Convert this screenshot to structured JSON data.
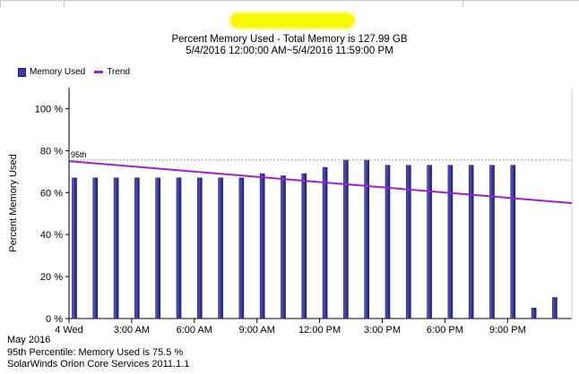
{
  "chart_title": "Percent Memory Used - Total Memory is 127.99 GB",
  "chart_subtitle": "5/4/2016 12:00:00 AM~5/4/2016 11:59:00 PM",
  "legend": {
    "bars_label": "Memory Used",
    "line_label": "Trend"
  },
  "footer": {
    "month": "May 2016",
    "percentile_note": "95th Percentile: Memory Used is 75.5  %",
    "product": "SolarWinds Orion Core Services 2011.1.1"
  },
  "chart_data": {
    "type": "bar",
    "title": "Percent Memory Used - Total Memory is 127.99 GB",
    "subtitle": "5/4/2016 12:00:00 AM~5/4/2016 11:59:00 PM",
    "ylabel": "Percent Memory Used",
    "ylim": [
      0,
      110
    ],
    "yticks": [
      0,
      20,
      40,
      60,
      80,
      100
    ],
    "ytick_labels": [
      "0 %",
      "20 %",
      "40 %",
      "60 %",
      "80 %",
      "100 %"
    ],
    "xtick_labels": [
      "4 Wed",
      "3:00 AM",
      "6:00 AM",
      "9:00 AM",
      "12:00 PM",
      "3:00 PM",
      "6:00 PM",
      "9:00 PM"
    ],
    "xtick_hours": [
      0,
      3,
      6,
      9,
      12,
      15,
      18,
      21
    ],
    "x_hours": [
      0,
      1,
      2,
      3,
      4,
      5,
      6,
      7,
      8,
      9,
      10,
      11,
      12,
      13,
      14,
      15,
      16,
      17,
      18,
      19,
      20,
      21,
      22,
      23
    ],
    "series": [
      {
        "name": "Memory Used",
        "values": [
          67,
          67,
          67,
          67,
          67,
          67,
          67,
          67,
          67,
          69,
          68,
          69,
          72,
          75.5,
          75.5,
          73,
          73,
          73,
          73,
          73,
          73,
          73,
          5,
          10
        ],
        "color": "#3c3ca8"
      }
    ],
    "trend": {
      "name": "Trend",
      "start": 75,
      "end": 55,
      "color": "#a020c8"
    },
    "percentile": {
      "label": "95th",
      "value": 75.5
    },
    "legend_position": "top-left",
    "grid": false
  }
}
